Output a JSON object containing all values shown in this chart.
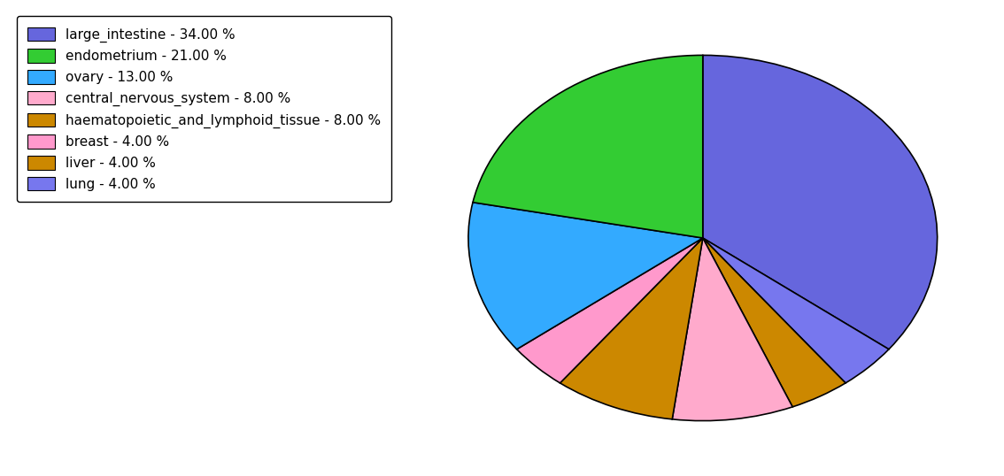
{
  "labels": [
    "large_intestine",
    "lung",
    "liver",
    "central_nervous_system",
    "haematopoietic_and_lymphoid_tissue",
    "breast",
    "ovary",
    "endometrium"
  ],
  "values": [
    34.0,
    4.0,
    4.0,
    8.0,
    8.0,
    4.0,
    13.0,
    21.0
  ],
  "colors": [
    "#6666dd",
    "#7777ee",
    "#cc8800",
    "#ffaacc",
    "#cc8800",
    "#ff99cc",
    "#33aaff",
    "#33cc33"
  ],
  "legend_labels": [
    "large_intestine - 34.00 %",
    "endometrium - 21.00 %",
    "ovary - 13.00 %",
    "central_nervous_system - 8.00 %",
    "haematopoietic_and_lymphoid_tissue - 8.00 %",
    "breast - 4.00 %",
    "liver - 4.00 %",
    "lung - 4.00 %"
  ],
  "legend_colors": [
    "#6666dd",
    "#33cc33",
    "#33aaff",
    "#ffaacc",
    "#cc8800",
    "#ff99cc",
    "#cc8800",
    "#7777ee"
  ],
  "startangle": 90,
  "figsize": [
    11.34,
    5.38
  ],
  "dpi": 100,
  "background_color": "#ffffff"
}
